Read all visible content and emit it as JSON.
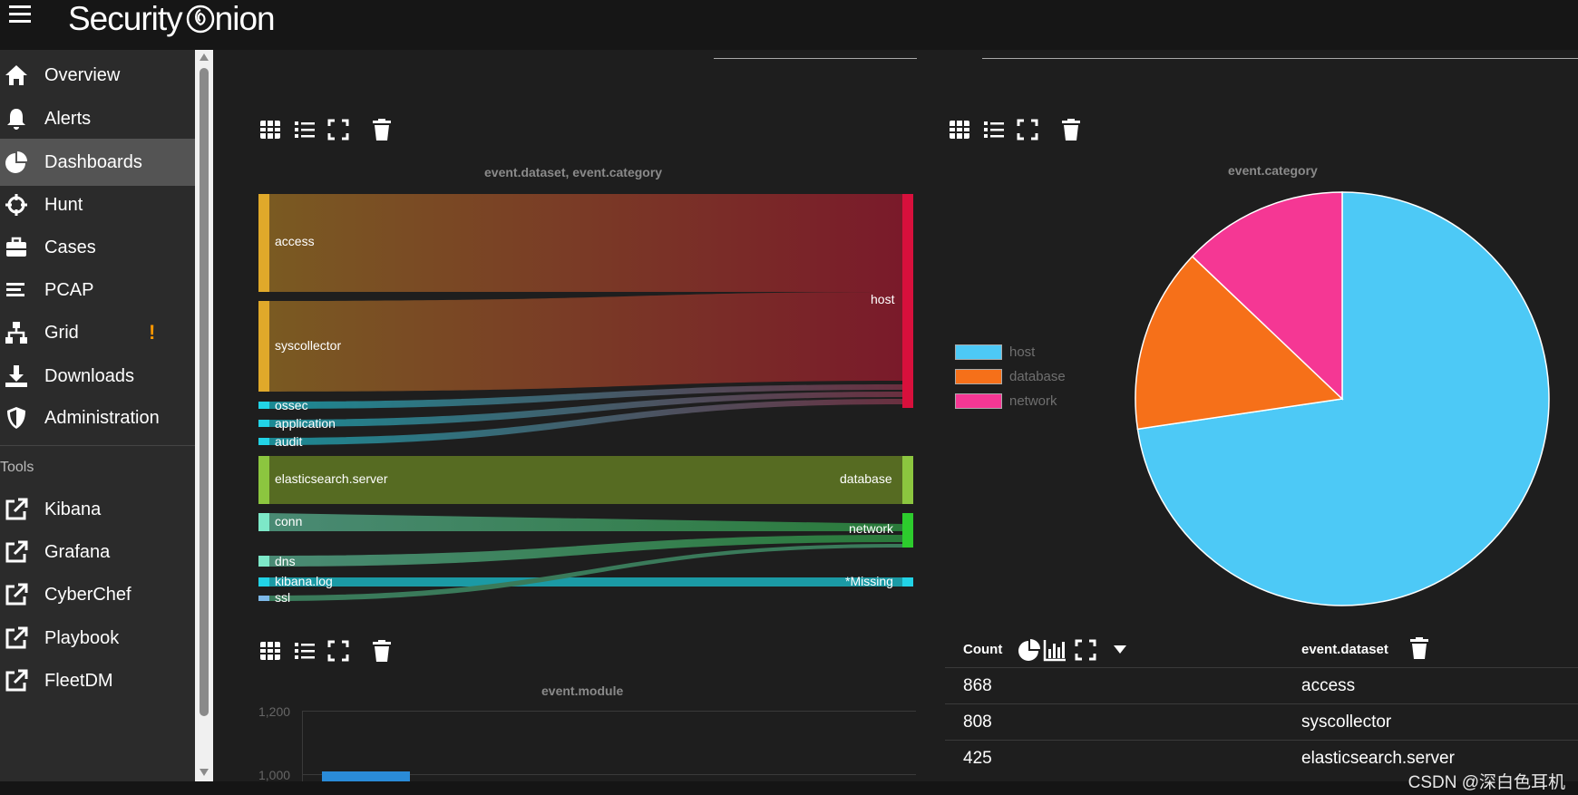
{
  "app": {
    "brand": "Security",
    "brand_suffix": "nion"
  },
  "sidebar": {
    "items": [
      {
        "label": "Overview",
        "icon": "home-icon",
        "active": false
      },
      {
        "label": "Alerts",
        "icon": "bell-icon",
        "active": false
      },
      {
        "label": "Dashboards",
        "icon": "pie-icon",
        "active": true
      },
      {
        "label": "Hunt",
        "icon": "crosshairs-icon",
        "active": false
      },
      {
        "label": "Cases",
        "icon": "briefcase-icon",
        "active": false
      },
      {
        "label": "PCAP",
        "icon": "lines-icon",
        "active": false
      },
      {
        "label": "Grid",
        "icon": "sitemap-icon",
        "active": false,
        "badge": "!"
      },
      {
        "label": "Downloads",
        "icon": "download-icon",
        "active": false
      },
      {
        "label": "Administration",
        "icon": "shield-icon",
        "active": false
      }
    ],
    "tools_title": "Tools",
    "tools": [
      {
        "label": "Kibana",
        "icon": "external-link-icon"
      },
      {
        "label": "Grafana",
        "icon": "external-link-icon"
      },
      {
        "label": "CyberChef",
        "icon": "external-link-icon"
      },
      {
        "label": "Playbook",
        "icon": "external-link-icon"
      },
      {
        "label": "FleetDM",
        "icon": "external-link-icon"
      }
    ]
  },
  "sankey": {
    "title": "event.dataset, event.category",
    "sources": [
      "access",
      "syscollector",
      "ossec",
      "application",
      "audit",
      "elasticsearch.server",
      "conn",
      "dns",
      "kibana.log",
      "ssl"
    ],
    "targets": [
      "host",
      "database",
      "network",
      "*Missing"
    ],
    "colors": {
      "access": "#e0a92a",
      "syscollector": "#e0a92a",
      "ossec": "#22d3e6",
      "application": "#22d3e6",
      "audit": "#22d3e6",
      "elasticsearch.server": "#8cc63f",
      "conn": "#7de8c8",
      "dns": "#7de8c8",
      "kibana.log": "#22d3e6",
      "ssl": "#7db8e8",
      "host": "#d8103c",
      "database": "#8cc63f",
      "network": "#2dcc2d",
      "*Missing": "#22d3e6"
    }
  },
  "pie": {
    "title": "event.category",
    "legend": [
      {
        "label": "host",
        "color": "#4dc9f6"
      },
      {
        "label": "database",
        "color": "#f67019"
      },
      {
        "label": "network",
        "color": "#f53794"
      }
    ]
  },
  "chart_data": [
    {
      "type": "pie",
      "title": "event.category",
      "labels": [
        "host",
        "database",
        "network"
      ],
      "values": [
        2140,
        425,
        380
      ]
    },
    {
      "type": "bar",
      "title": "event.module",
      "yticks": [
        "1,200",
        "1,000"
      ],
      "values": [
        1000
      ]
    }
  ],
  "table": {
    "header_count": "Count",
    "header_field": "event.dataset",
    "rows": [
      {
        "count": "868",
        "value": "access"
      },
      {
        "count": "808",
        "value": "syscollector"
      },
      {
        "count": "425",
        "value": "elasticsearch.server"
      }
    ]
  },
  "bar_chart": {
    "title": "event.module",
    "tick_1200": "1,200",
    "tick_1000": "1,000"
  },
  "watermark": "CSDN @深白色耳机"
}
